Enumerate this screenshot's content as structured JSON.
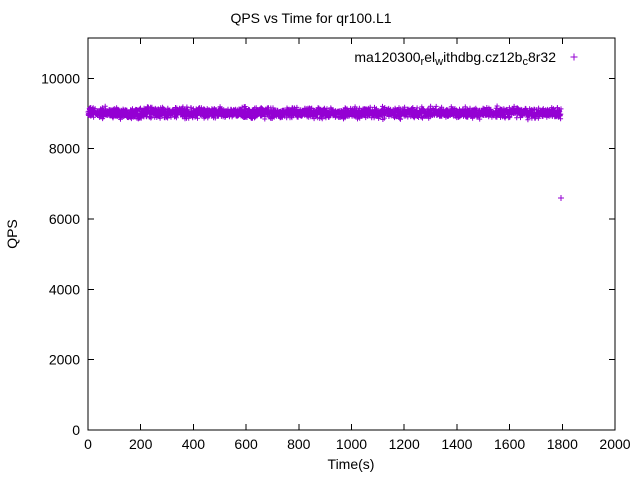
{
  "chart_data": {
    "type": "scatter",
    "title": "QPS vs Time for qr100.L1",
    "xlabel": "Time(s)",
    "ylabel": "QPS",
    "xlim": [
      0,
      2000
    ],
    "ylim": [
      0,
      11150
    ],
    "x_ticks": [
      0,
      200,
      400,
      600,
      800,
      1000,
      1200,
      1400,
      1600,
      1800,
      2000
    ],
    "y_ticks": [
      0,
      2000,
      4000,
      6000,
      8000,
      10000
    ],
    "grid": false,
    "legend_position": "top-right",
    "series": [
      {
        "name": "ma120300_rel_withdbg.cz12b_c8r32",
        "marker": "plus",
        "color": "#9400d3",
        "band": {
          "x_min": 0,
          "x_max": 1795,
          "n_points": 2200,
          "y_mean": 9020,
          "y_spread": 220
        },
        "outliers": [
          [
            1795,
            6600
          ]
        ]
      }
    ],
    "legend": {
      "segments": [
        {
          "t": "ma120300"
        },
        {
          "t": "r",
          "sub": true
        },
        {
          "t": "el"
        },
        {
          "t": "w",
          "sub": true
        },
        {
          "t": "ithdbg.cz12b"
        },
        {
          "t": "c",
          "sub": true
        },
        {
          "t": "8r32"
        }
      ]
    }
  }
}
